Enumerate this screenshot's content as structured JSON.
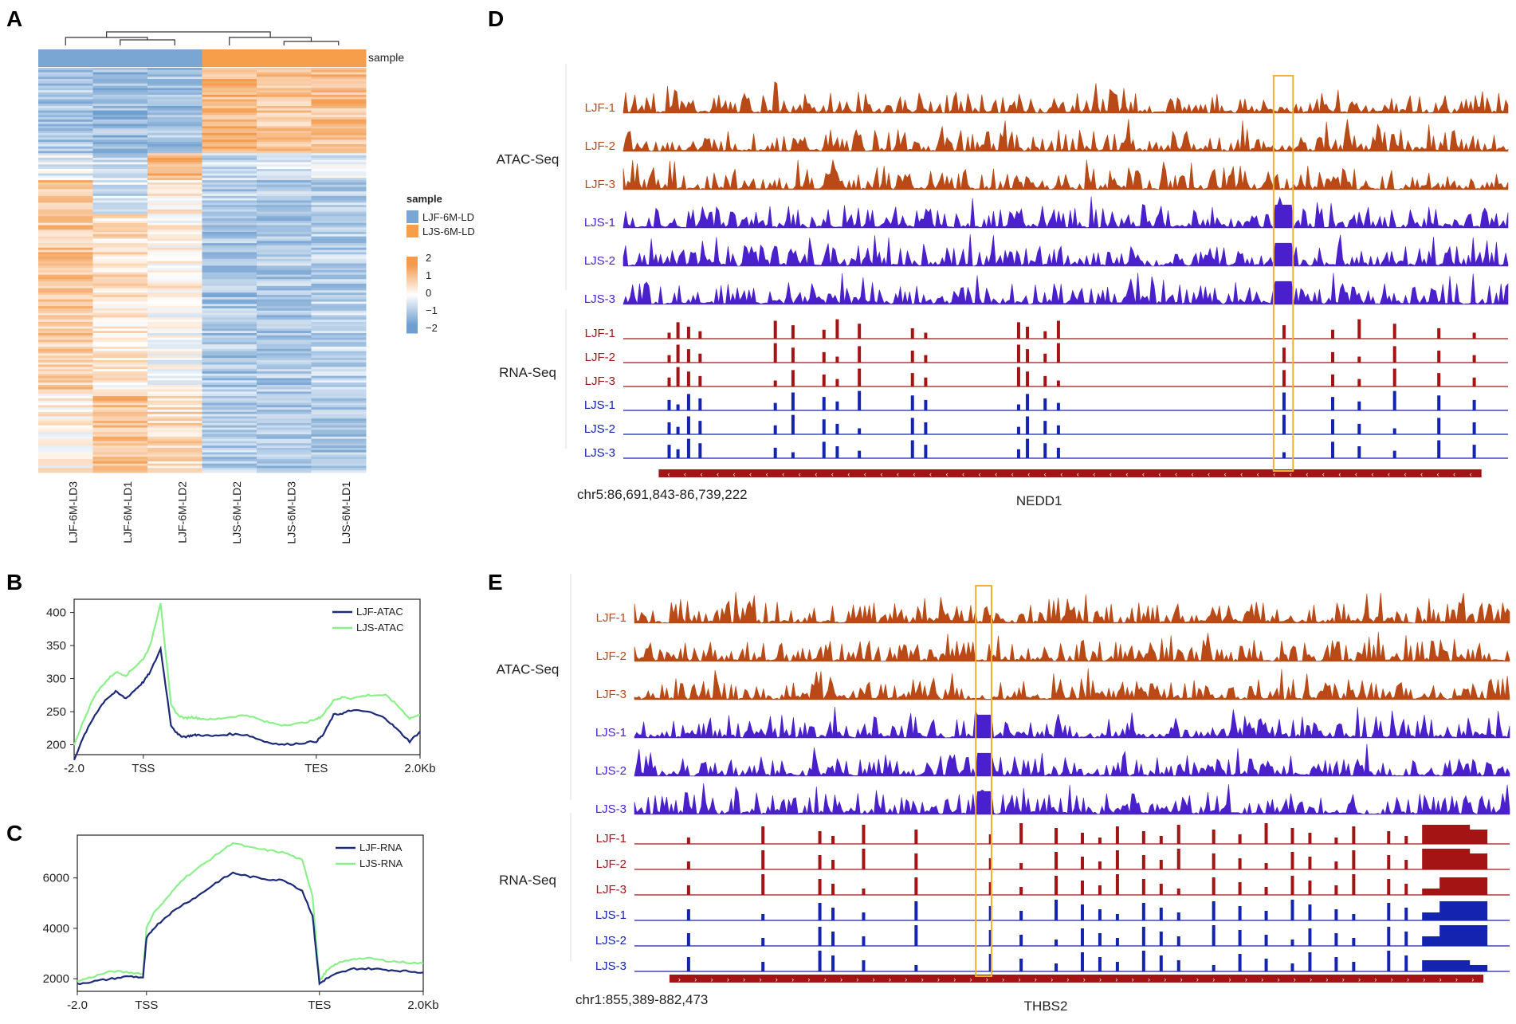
{
  "colors": {
    "ljf_blue": "#7aa6d3",
    "ljs_orange": "#f79e4b",
    "heat_low": "#6f9fd0",
    "heat_mid": "#ffffff",
    "heat_high": "#f39a4c",
    "ljf_line": "#1c2a78",
    "ljs_line": "#8cf08a",
    "atac_ljf": "#b84a17",
    "atac_ljs": "#4a1fcc",
    "rna_ljf": "#a51414",
    "rna_ljs": "#1424b0",
    "highlight": "#f0b030",
    "gene": "#a51414"
  },
  "panels": {
    "a": "A",
    "b": "B",
    "c": "C",
    "d": "D",
    "e": "E"
  },
  "chart_data": [
    {
      "panel": "A",
      "type": "heatmap",
      "columns": [
        "LJF-6M-LD3",
        "LJF-6M-LD1",
        "LJF-6M-LD2",
        "LJS-6M-LD2",
        "LJS-6M-LD3",
        "LJS-6M-LD1"
      ],
      "column_groups": [
        "LJF-6M-LD",
        "LJF-6M-LD",
        "LJF-6M-LD",
        "LJS-6M-LD",
        "LJS-6M-LD",
        "LJS-6M-LD"
      ],
      "annotation_label": "sample",
      "legend_title": "sample",
      "legend_entries": [
        "LJF-6M-LD",
        "LJS-6M-LD"
      ],
      "colorbar_ticks": [
        "2",
        "1",
        "0",
        "−1",
        "−2"
      ],
      "colorbar_range": [
        -2,
        2
      ],
      "cluster_blocks": [
        {
          "from": 0.0,
          "to": 0.21,
          "values": [
            -0.9,
            -1.1,
            -1.0,
            1.1,
            0.9,
            1.0
          ]
        },
        {
          "from": 0.21,
          "to": 0.28,
          "values": [
            -0.3,
            -0.6,
            1.2,
            -0.6,
            -0.4,
            -0.3
          ]
        },
        {
          "from": 0.28,
          "to": 0.36,
          "values": [
            1.0,
            -0.5,
            0.3,
            -0.8,
            -0.9,
            -0.8
          ]
        },
        {
          "from": 0.36,
          "to": 0.58,
          "values": [
            0.9,
            0.5,
            0.2,
            -1.0,
            -0.9,
            -0.8
          ]
        },
        {
          "from": 0.58,
          "to": 0.8,
          "values": [
            0.8,
            0.3,
            -0.1,
            -0.9,
            -0.9,
            -0.7
          ]
        },
        {
          "from": 0.8,
          "to": 1.0,
          "values": [
            0.2,
            1.0,
            0.6,
            -0.8,
            -1.0,
            -0.9
          ]
        }
      ]
    },
    {
      "panel": "B",
      "type": "line",
      "x_ticks": [
        "-2.0",
        "TSS",
        "TES",
        "2.0Kb"
      ],
      "y_ticks": [
        200,
        250,
        300,
        350,
        400
      ],
      "ylim": [
        185,
        420
      ],
      "series": [
        {
          "name": "LJF-ATAC",
          "x": [
            0,
            3,
            6,
            9,
            12,
            15,
            18,
            20,
            22,
            25,
            28,
            30,
            32,
            34,
            36,
            40,
            45,
            50,
            55,
            60,
            65,
            70,
            72,
            75,
            78,
            80,
            85,
            90,
            93,
            97,
            100
          ],
          "y": [
            178,
            215,
            245,
            268,
            280,
            270,
            285,
            295,
            310,
            345,
            230,
            215,
            212,
            214,
            215,
            213,
            216,
            215,
            205,
            200,
            202,
            205,
            215,
            245,
            248,
            252,
            250,
            240,
            225,
            205,
            220
          ]
        },
        {
          "name": "LJS-ATAC",
          "x": [
            0,
            3,
            6,
            9,
            12,
            15,
            18,
            20,
            22,
            25,
            28,
            30,
            32,
            34,
            36,
            40,
            45,
            50,
            55,
            60,
            65,
            70,
            72,
            75,
            78,
            80,
            85,
            90,
            93,
            97,
            100
          ],
          "y": [
            200,
            240,
            275,
            295,
            310,
            305,
            320,
            330,
            350,
            415,
            260,
            245,
            240,
            242,
            240,
            238,
            242,
            245,
            235,
            230,
            232,
            238,
            245,
            268,
            272,
            270,
            275,
            275,
            262,
            240,
            245
          ]
        }
      ]
    },
    {
      "panel": "C",
      "type": "line",
      "x_ticks": [
        "-2.0",
        "TSS",
        "TES",
        "2.0Kb"
      ],
      "y_ticks": [
        2000,
        4000,
        6000
      ],
      "ylim": [
        1500,
        7700
      ],
      "series": [
        {
          "name": "LJF-RNA",
          "x": [
            0,
            5,
            10,
            15,
            19,
            20,
            22,
            26,
            30,
            35,
            40,
            45,
            50,
            55,
            60,
            65,
            68,
            70,
            72,
            75,
            80,
            85,
            90,
            95,
            100
          ],
          "y": [
            1800,
            1900,
            2000,
            2100,
            2050,
            3600,
            4000,
            4500,
            4900,
            5300,
            5800,
            6200,
            6050,
            5950,
            5900,
            5500,
            4500,
            1800,
            2000,
            2200,
            2400,
            2400,
            2350,
            2300,
            2250
          ]
        },
        {
          "name": "LJS-RNA",
          "x": [
            0,
            5,
            10,
            15,
            19,
            20,
            22,
            26,
            30,
            35,
            40,
            45,
            50,
            55,
            60,
            65,
            68,
            70,
            72,
            75,
            80,
            85,
            90,
            95,
            100
          ],
          "y": [
            1900,
            2100,
            2300,
            2250,
            2200,
            4000,
            4600,
            5200,
            5900,
            6400,
            6900,
            7400,
            7200,
            7100,
            7000,
            6700,
            5300,
            1900,
            2300,
            2600,
            2800,
            2800,
            2700,
            2650,
            2600
          ]
        }
      ]
    },
    {
      "panel": "D",
      "type": "track",
      "group_labels": [
        "ATAC-Seq",
        "RNA-Seq"
      ],
      "atac_tracks": [
        "LJF-1",
        "LJF-2",
        "LJF-3",
        "LJS-1",
        "LJS-2",
        "LJS-3"
      ],
      "rna_tracks": [
        "LJF-1",
        "LJF-2",
        "LJF-3",
        "LJS-1",
        "LJS-2",
        "LJS-3"
      ],
      "locus": "chr5:86,691,843-86,739,222",
      "gene": "NEDD1",
      "highlight_fraction": [
        0.735,
        0.757
      ],
      "rna_peak_positions": [
        0.05,
        0.06,
        0.072,
        0.085,
        0.17,
        0.19,
        0.225,
        0.24,
        0.265,
        0.325,
        0.34,
        0.445,
        0.455,
        0.475,
        0.49,
        0.745,
        0.8,
        0.83,
        0.87,
        0.92,
        0.96
      ]
    },
    {
      "panel": "E",
      "type": "track",
      "group_labels": [
        "ATAC-Seq",
        "RNA-Seq"
      ],
      "atac_tracks": [
        "LJF-1",
        "LJF-2",
        "LJF-3",
        "LJS-1",
        "LJS-2",
        "LJS-3"
      ],
      "rna_tracks": [
        "LJF-1",
        "LJF-2",
        "LJF-3",
        "LJS-1",
        "LJS-2",
        "LJS-3"
      ],
      "locus": "chr1:855,389-882,473",
      "gene": "THBS2",
      "highlight_fraction": [
        0.39,
        0.408
      ],
      "rna_peak_positions": [
        0.06,
        0.145,
        0.21,
        0.225,
        0.26,
        0.32,
        0.405,
        0.44,
        0.48,
        0.51,
        0.53,
        0.55,
        0.58,
        0.6,
        0.62,
        0.66,
        0.69,
        0.72,
        0.75,
        0.77,
        0.8,
        0.82,
        0.86,
        0.88,
        0.9,
        0.92
      ]
    }
  ]
}
